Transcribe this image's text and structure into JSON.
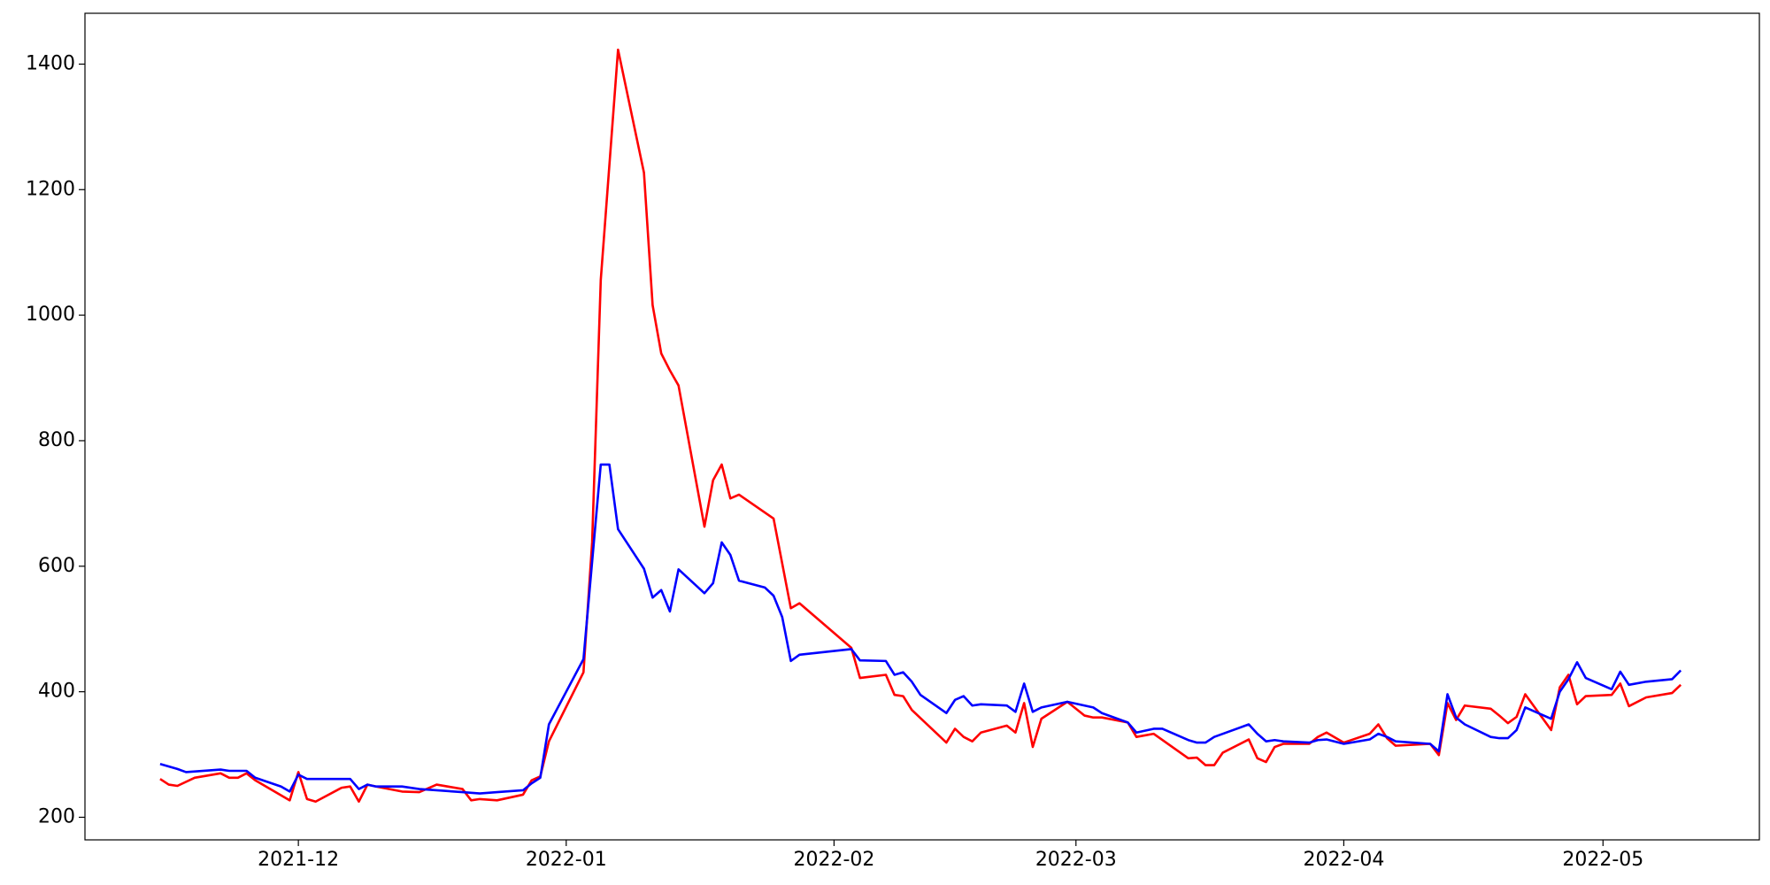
{
  "chart_data": {
    "type": "line",
    "xlim": [
      -24.7,
      169.1
    ],
    "ylim": [
      164,
      1481
    ],
    "xticks": [
      {
        "value": 0,
        "label": "2021-12"
      },
      {
        "value": 31,
        "label": "2022-01"
      },
      {
        "value": 62,
        "label": "2022-02"
      },
      {
        "value": 90,
        "label": "2022-03"
      },
      {
        "value": 121,
        "label": "2022-04"
      },
      {
        "value": 151,
        "label": "2022-05"
      }
    ],
    "yticks": [
      200,
      400,
      600,
      800,
      1000,
      1200,
      1400
    ],
    "series": [
      {
        "color": "#ff0000",
        "x": [
          -16,
          -15,
          -14,
          -12,
          -9,
          -8,
          -7,
          -6,
          -5,
          -1,
          0,
          1,
          2,
          5,
          6,
          7,
          8,
          9,
          12,
          14,
          16,
          19,
          20,
          21,
          23,
          26,
          27,
          28,
          29,
          33,
          34,
          35,
          37,
          40,
          41,
          42,
          43,
          44,
          47,
          48,
          49,
          50,
          51,
          55,
          57,
          58,
          64,
          65,
          68,
          69,
          70,
          71,
          75,
          76,
          77,
          78,
          79,
          82,
          83,
          84,
          85,
          86,
          89,
          91,
          92,
          93,
          96,
          97,
          99,
          103,
          104,
          105,
          106,
          107,
          110,
          111,
          112,
          113,
          114,
          117,
          118,
          119,
          121,
          124,
          125,
          126,
          127,
          131,
          132,
          133,
          134,
          135,
          138,
          139,
          140,
          141,
          142,
          145,
          146,
          147,
          148,
          149,
          152,
          153,
          154,
          156,
          159,
          160
        ],
        "values": [
          261,
          252,
          250,
          263,
          270,
          263,
          263,
          270,
          259,
          227,
          272,
          229,
          225,
          247,
          249,
          225,
          252,
          249,
          241,
          240,
          252,
          245,
          227,
          229,
          227,
          236,
          259,
          265,
          321,
          431,
          638,
          1056,
          1423,
          1227,
          1016,
          939,
          912,
          888,
          663,
          737,
          762,
          708,
          714,
          676,
          533,
          541,
          470,
          422,
          427,
          395,
          393,
          371,
          319,
          341,
          328,
          321,
          335,
          346,
          335,
          382,
          312,
          357,
          384,
          362,
          359,
          359,
          351,
          328,
          333,
          294,
          295,
          283,
          283,
          303,
          324,
          294,
          288,
          312,
          317,
          317,
          328,
          335,
          319,
          333,
          348,
          326,
          314,
          317,
          299,
          382,
          355,
          378,
          373,
          362,
          350,
          360,
          396,
          339,
          407,
          427,
          380,
          393,
          395,
          413,
          377,
          391,
          398,
          411
        ]
      },
      {
        "color": "#0000ff",
        "x": [
          -16,
          -14,
          -13,
          -9,
          -8,
          -7,
          -6,
          -5,
          -2,
          -1,
          0,
          1,
          6,
          7,
          8,
          9,
          12,
          14,
          19,
          21,
          23,
          26,
          27,
          28,
          29,
          33,
          35,
          36,
          37,
          40,
          41,
          42,
          43,
          44,
          47,
          48,
          49,
          50,
          51,
          54,
          55,
          56,
          57,
          58,
          64,
          65,
          68,
          69,
          70,
          71,
          72,
          75,
          76,
          77,
          78,
          79,
          82,
          83,
          84,
          85,
          86,
          89,
          92,
          93,
          96,
          97,
          99,
          100,
          103,
          104,
          105,
          106,
          110,
          111,
          112,
          113,
          114,
          117,
          118,
          119,
          121,
          124,
          125,
          126,
          127,
          131,
          132,
          133,
          134,
          135,
          138,
          139,
          140,
          141,
          142,
          145,
          146,
          147,
          148,
          149,
          152,
          153,
          154,
          156,
          159,
          160
        ],
        "values": [
          285,
          277,
          272,
          276,
          274,
          274,
          274,
          263,
          249,
          241,
          268,
          261,
          261,
          245,
          252,
          249,
          249,
          245,
          240,
          238,
          240,
          243,
          254,
          263,
          348,
          452,
          762,
          762,
          659,
          596,
          550,
          562,
          528,
          595,
          557,
          573,
          638,
          618,
          577,
          566,
          553,
          519,
          449,
          459,
          468,
          450,
          449,
          427,
          431,
          416,
          395,
          366,
          387,
          393,
          378,
          380,
          378,
          368,
          413,
          368,
          375,
          384,
          375,
          366,
          351,
          335,
          341,
          341,
          323,
          319,
          319,
          328,
          348,
          333,
          321,
          323,
          321,
          319,
          323,
          324,
          317,
          324,
          333,
          328,
          321,
          317,
          305,
          396,
          359,
          348,
          328,
          326,
          326,
          339,
          375,
          357,
          400,
          420,
          447,
          422,
          404,
          432,
          411,
          416,
          420,
          434
        ]
      }
    ]
  }
}
